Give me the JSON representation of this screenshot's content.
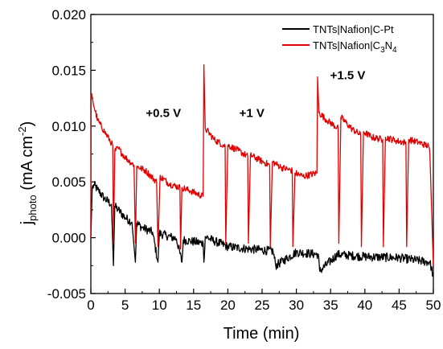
{
  "chart_data": {
    "type": "line",
    "xlabel": "Time (min)",
    "ylabel_main": "j",
    "ylabel_sub": "photo",
    "ylabel_unit": " (mA cm",
    "ylabel_sup": "-2",
    "ylabel_close": ")",
    "xlim": [
      0,
      50
    ],
    "ylim": [
      -0.005,
      0.02
    ],
    "xticks": [
      0,
      5,
      10,
      15,
      20,
      25,
      30,
      35,
      40,
      45,
      50
    ],
    "xtick_labels": [
      "0",
      "5",
      "10",
      "15",
      "20",
      "25",
      "30",
      "35",
      "40",
      "45",
      "50"
    ],
    "yticks": [
      -0.005,
      0.0,
      0.005,
      0.01,
      0.015,
      0.02
    ],
    "ytick_labels": [
      "-0.005",
      "0.000",
      "0.005",
      "0.010",
      "0.015",
      "0.020"
    ],
    "grid": false,
    "legend_position": "top-right",
    "annotations": [
      {
        "text": "+0.5 V",
        "x": 10.6,
        "y": 0.0108
      },
      {
        "text": "+1 V",
        "x": 23.5,
        "y": 0.0108
      },
      {
        "text": "+1.5 V",
        "x": 37.5,
        "y": 0.0142
      }
    ],
    "series": [
      {
        "name": "TNTs|Nafion|C-Pt",
        "color": "#000000",
        "x": [
          0,
          0.2,
          0.5,
          1,
          2,
          3,
          3.3,
          3.5,
          4,
          5,
          6,
          6.5,
          6.7,
          7.5,
          9,
          9.8,
          10,
          11,
          12.5,
          13.3,
          13.5,
          14.5,
          16.4,
          16.5,
          16.7,
          18,
          20,
          23,
          26.6,
          27,
          30,
          33.2,
          33.4,
          36,
          40,
          45,
          49.5,
          50
        ],
        "y": [
          0.0,
          0.0045,
          0.0047,
          0.0043,
          0.0035,
          0.003,
          -0.0025,
          0.0028,
          0.0025,
          0.0018,
          0.0014,
          -0.0022,
          0.0013,
          0.0009,
          0.0005,
          -0.0022,
          0.0004,
          0.0002,
          -0.0001,
          -0.0022,
          -0.0002,
          -0.0003,
          -0.0005,
          -0.0022,
          0.0001,
          -0.0003,
          -0.0008,
          -0.001,
          -0.0012,
          -0.0025,
          -0.0013,
          -0.0015,
          -0.003,
          -0.0015,
          -0.0017,
          -0.0018,
          -0.0022,
          -0.0035
        ]
      },
      {
        "name": "TNTs|Nafion|C3N4",
        "name_prefix": "TNTs|Nafion|C",
        "name_sub1": "3",
        "name_mid": "N",
        "name_sub2": "4",
        "color": "#e00000",
        "x": [
          0,
          0.05,
          0.3,
          1,
          2,
          3,
          3.2,
          3.3,
          3.5,
          4,
          5,
          6.3,
          6.5,
          6.7,
          8,
          9.6,
          9.8,
          10.1,
          11.5,
          13,
          13.1,
          13.3,
          14.5,
          16.4,
          16.5,
          16.7,
          18,
          19.6,
          19.7,
          20,
          21.5,
          22.9,
          23,
          23.3,
          24.5,
          26.1,
          26.2,
          26.5,
          27.8,
          29.4,
          29.5,
          29.8,
          31,
          33,
          33.1,
          33.3,
          34.5,
          36.1,
          36.2,
          36.5,
          38,
          39.4,
          39.5,
          39.8,
          41,
          42.6,
          42.7,
          43,
          44.5,
          46,
          46.1,
          46.4,
          48,
          49.3,
          49.5,
          50
        ],
        "y": [
          0.0,
          0.0128,
          0.0122,
          0.0105,
          0.0095,
          0.0085,
          0.0082,
          -0.0005,
          0.0078,
          0.008,
          0.0072,
          0.0065,
          -0.0005,
          0.0064,
          0.006,
          0.005,
          -0.0008,
          0.0055,
          0.0048,
          0.0045,
          -0.001,
          0.0045,
          0.0042,
          0.0037,
          0.0155,
          0.0098,
          0.0088,
          0.0082,
          -0.0005,
          0.0083,
          0.0078,
          0.0073,
          -0.0005,
          0.0074,
          0.007,
          0.0065,
          -0.0008,
          0.0068,
          0.0063,
          0.006,
          -0.0008,
          0.0058,
          0.0055,
          0.0058,
          0.0144,
          0.0112,
          0.0105,
          0.0098,
          -0.0005,
          0.0108,
          0.0098,
          0.0092,
          -0.0008,
          0.0095,
          0.009,
          0.0088,
          -0.0008,
          0.009,
          0.0087,
          0.0085,
          -0.0008,
          0.0088,
          0.0085,
          0.0082,
          0.0075,
          -0.0025
        ]
      }
    ]
  }
}
